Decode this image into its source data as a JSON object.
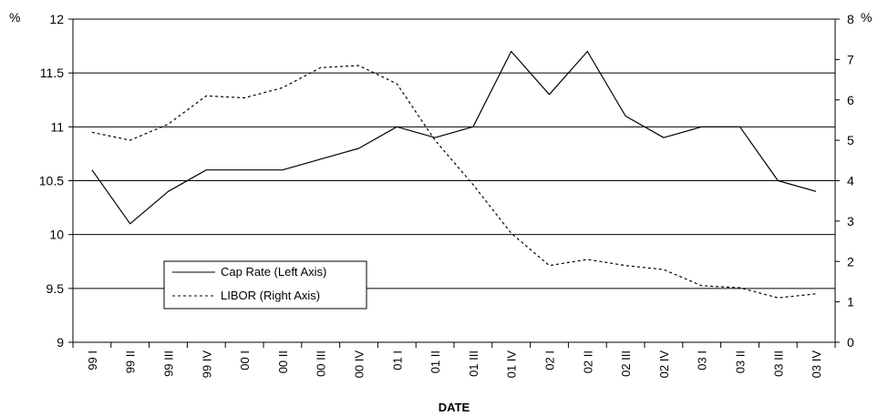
{
  "chart_data": {
    "type": "line",
    "xlabel": "DATE",
    "y_left_unit": "%",
    "y_right_unit": "%",
    "y_left_lim": [
      9,
      12
    ],
    "y_right_lim": [
      0,
      8
    ],
    "y_left_ticks": [
      "9",
      "9.5",
      "10",
      "10.5",
      "11",
      "11.5",
      "12"
    ],
    "y_right_ticks": [
      "0",
      "1",
      "2",
      "3",
      "4",
      "5",
      "6",
      "7",
      "8"
    ],
    "grid": "horizontal lines at left-axis ticks",
    "legend_position": "lower-left",
    "categories": [
      "99 I",
      "99 II",
      "99 III",
      "99 IV",
      "00 I",
      "00 II",
      "00 III",
      "00 IV",
      "01 I",
      "01 II",
      "01 III",
      "01 IV",
      "02 I",
      "02 II",
      "02 III",
      "02 IV",
      "03 I",
      "03 II",
      "03 III",
      "03 IV"
    ],
    "series": [
      {
        "name": "Cap Rate (Left Axis)",
        "axis": "left",
        "style": "solid",
        "values": [
          10.6,
          10.1,
          10.4,
          10.6,
          10.6,
          10.6,
          10.7,
          10.8,
          11.0,
          10.9,
          11.0,
          11.7,
          11.3,
          11.7,
          11.1,
          10.9,
          11.0,
          11.0,
          10.5,
          10.4
        ]
      },
      {
        "name": "LIBOR (Right Axis)",
        "axis": "right",
        "style": "dashed",
        "values": [
          5.2,
          5.0,
          5.4,
          6.1,
          6.05,
          6.3,
          6.8,
          6.85,
          6.4,
          5.0,
          3.9,
          2.7,
          1.9,
          2.05,
          1.9,
          1.8,
          1.4,
          1.35,
          1.1,
          1.2
        ]
      }
    ]
  }
}
